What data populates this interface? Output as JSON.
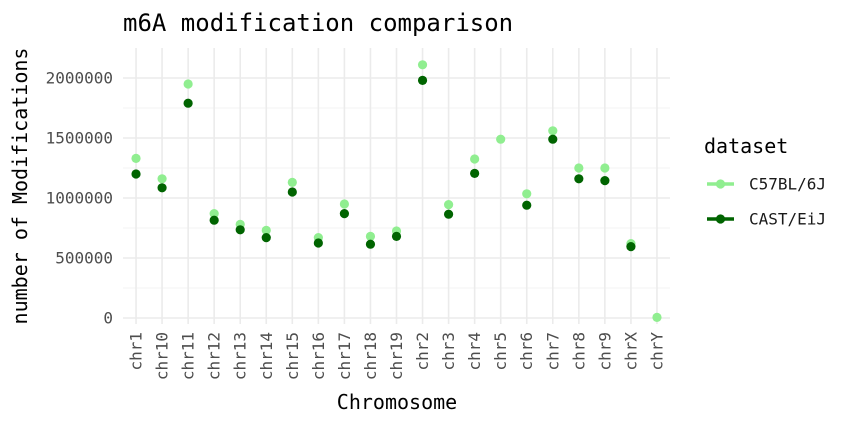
{
  "chart_data": {
    "type": "scatter",
    "title": "m6A modification comparison",
    "xlabel": "Chromosome",
    "ylabel": "number of Modifications",
    "categories": [
      "chr1",
      "chr10",
      "chr11",
      "chr12",
      "chr13",
      "chr14",
      "chr15",
      "chr16",
      "chr17",
      "chr18",
      "chr19",
      "chr2",
      "chr3",
      "chr4",
      "chr5",
      "chr6",
      "chr7",
      "chr8",
      "chr9",
      "chrX",
      "chrY"
    ],
    "ylim": [
      -50000,
      2250000
    ],
    "y_ticks": [
      0,
      500000,
      1000000,
      1500000,
      2000000
    ],
    "y_tick_labels": [
      "0",
      "500000",
      "1000000",
      "1500000",
      "2000000"
    ],
    "grid": true,
    "legend_title": "dataset",
    "legend_position": "right",
    "series": [
      {
        "name": "C57BL/6J",
        "color": "#90ee90",
        "values": [
          1330000,
          1160000,
          1950000,
          870000,
          780000,
          730000,
          1130000,
          670000,
          950000,
          680000,
          725000,
          2110000,
          945000,
          1325000,
          1490000,
          1035000,
          1560000,
          1250000,
          1250000,
          620000,
          5000
        ]
      },
      {
        "name": "CAST/EiJ",
        "color": "#006400",
        "values": [
          1200000,
          1085000,
          1790000,
          815000,
          735000,
          670000,
          1050000,
          625000,
          870000,
          615000,
          680000,
          1980000,
          865000,
          1205000,
          null,
          940000,
          1490000,
          1160000,
          1145000,
          595000,
          null
        ]
      }
    ]
  }
}
